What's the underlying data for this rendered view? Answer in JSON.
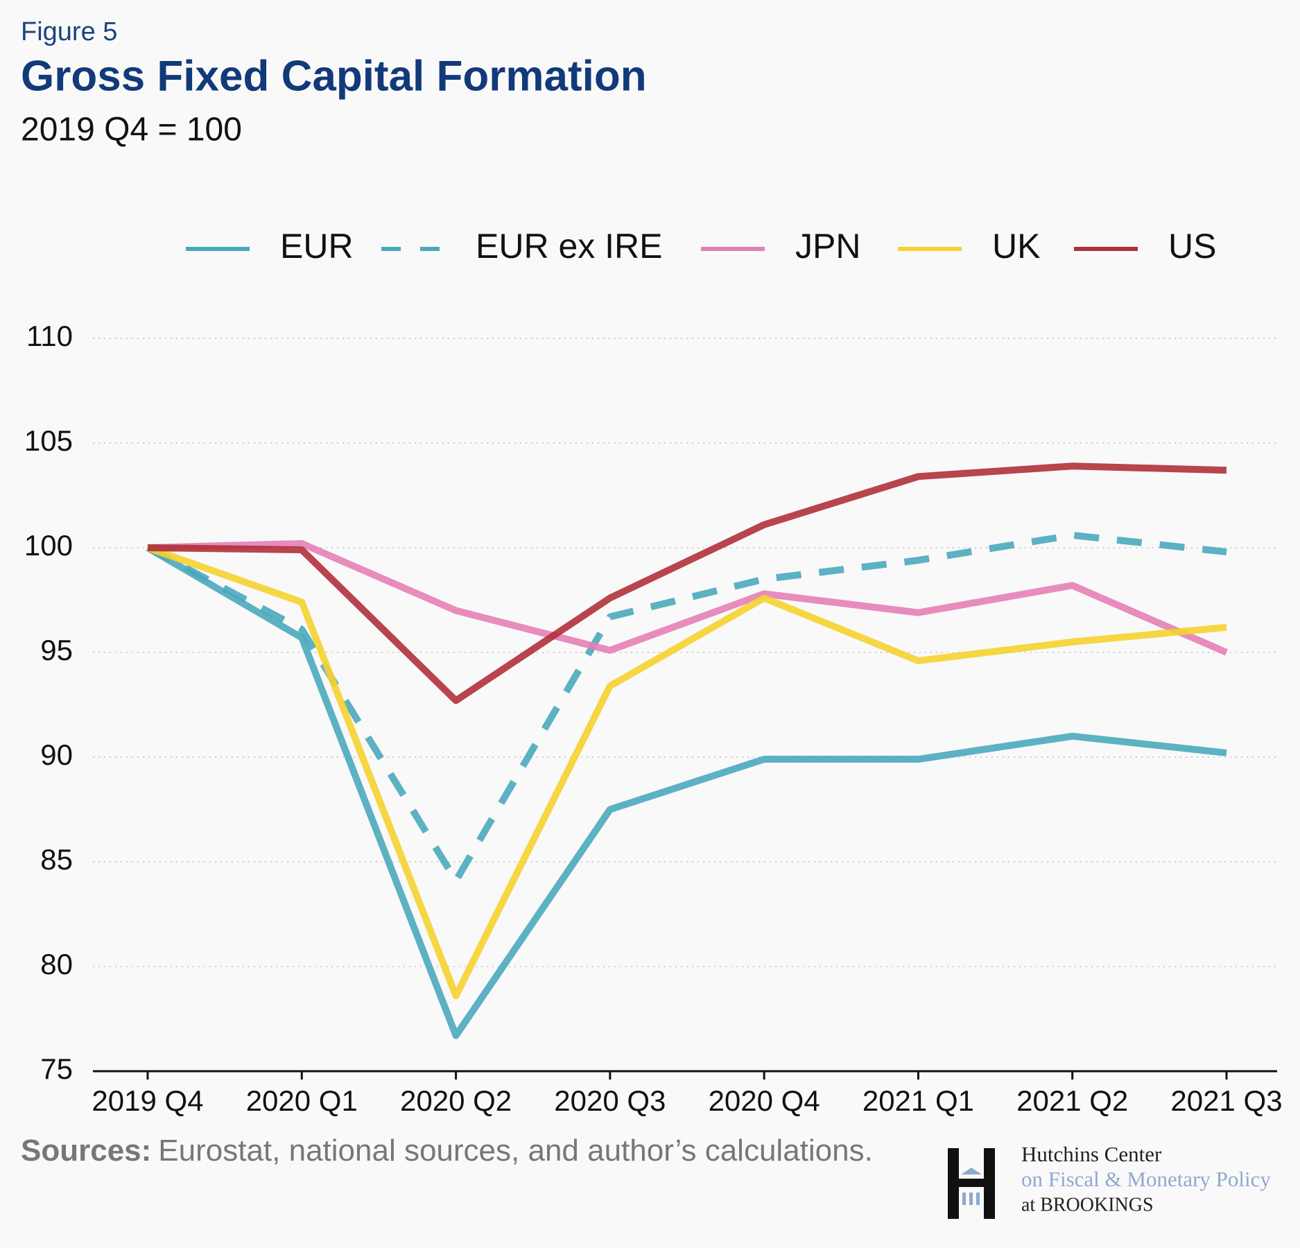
{
  "chart_data": {
    "type": "line",
    "figure_label": "Figure 5",
    "title": "Gross Fixed Capital Formation",
    "subtitle": "2019 Q4 = 100",
    "categories": [
      "2019 Q4",
      "2020 Q1",
      "2020 Q2",
      "2020 Q3",
      "2020 Q4",
      "2021 Q1",
      "2021 Q2",
      "2021 Q3"
    ],
    "series": [
      {
        "name": "EUR",
        "color": "#4aa8bd",
        "dashed": false,
        "values": [
          100,
          95.7,
          76.7,
          87.5,
          89.9,
          89.9,
          91.0,
          90.2
        ]
      },
      {
        "name": "EUR ex IRE",
        "color": "#4aa8bd",
        "dashed": true,
        "values": [
          100,
          96.1,
          84.1,
          96.7,
          98.5,
          99.4,
          100.6,
          99.8
        ]
      },
      {
        "name": "JPN",
        "color": "#e47fb5",
        "dashed": false,
        "values": [
          100,
          100.2,
          97.0,
          95.1,
          97.8,
          96.9,
          98.2,
          95.0
        ]
      },
      {
        "name": "UK",
        "color": "#f5d22e",
        "dashed": false,
        "values": [
          100,
          97.4,
          78.6,
          93.4,
          97.6,
          94.6,
          95.5,
          96.2
        ]
      },
      {
        "name": "US",
        "color": "#b0303a",
        "dashed": false,
        "values": [
          100,
          99.9,
          92.7,
          97.6,
          101.1,
          103.4,
          103.9,
          103.7
        ]
      }
    ],
    "ylim": [
      75,
      110
    ],
    "yticks": [
      75,
      80,
      85,
      90,
      95,
      100,
      105,
      110
    ],
    "grid": true,
    "source_label": "Sources:",
    "source": "Eurostat, national sources, and author’s calculations.",
    "logo": [
      "Hutchins Center",
      "on Fiscal & Monetary Policy",
      "at BROOKINGS"
    ]
  }
}
